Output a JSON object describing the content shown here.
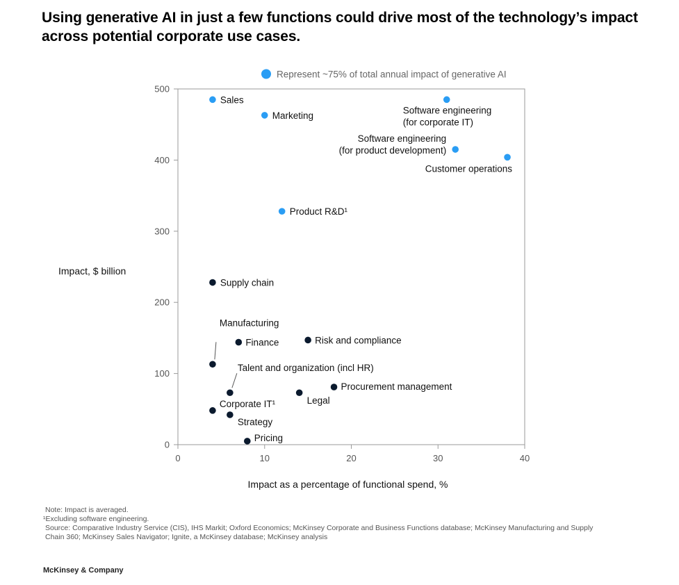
{
  "title": "Using generative AI in just a few functions could drive most of the technology’s impact across potential corporate use cases.",
  "notes": {
    "note": "Note: Impact is averaged.",
    "footnote": "¹Excluding software engineering.",
    "source": "Source: Comparative Industry Service (CIS), IHS Markit; Oxford Economics; McKinsey Corporate and Business Functions database; McKinsey Manufacturing and Supply Chain 360; McKinsey Sales Navigator; Ignite, a McKinsey database; McKinsey analysis"
  },
  "brand": "McKinsey & Company",
  "chart_data": {
    "type": "scatter",
    "xlabel": "Impact as a percentage of functional spend, %",
    "ylabel": "Impact, $ billion",
    "xlim": [
      0,
      40
    ],
    "ylim": [
      0,
      500
    ],
    "xticks": [
      0,
      10,
      20,
      30,
      40
    ],
    "yticks": [
      0,
      100,
      200,
      300,
      400,
      500
    ],
    "grid": false,
    "legend": {
      "label": "Represent ~75% of total annual impact of generative AI",
      "placement": "top-center",
      "color": "#2A9DF4"
    },
    "colors": {
      "highlight": "#2A9DF4",
      "other": "#0B1A2E"
    },
    "points": [
      {
        "label": "Sales",
        "x": 4,
        "y": 485,
        "highlight": true
      },
      {
        "label": "Marketing",
        "x": 10,
        "y": 463,
        "highlight": true
      },
      {
        "label": "Software engineering\n(for corporate IT)",
        "x": 31,
        "y": 485,
        "highlight": true
      },
      {
        "label": "Software engineering\n(for product development)",
        "x": 32,
        "y": 415,
        "highlight": true
      },
      {
        "label": "Customer operations",
        "x": 38,
        "y": 404,
        "highlight": true
      },
      {
        "label": "Product R&D¹",
        "x": 12,
        "y": 328,
        "highlight": true
      },
      {
        "label": "Supply chain",
        "x": 4,
        "y": 228,
        "highlight": false
      },
      {
        "label": "Manufacturing",
        "x": 4,
        "y": 113,
        "highlight": false
      },
      {
        "label": "Finance",
        "x": 7,
        "y": 144,
        "highlight": false
      },
      {
        "label": "Risk and compliance",
        "x": 15,
        "y": 147,
        "highlight": false
      },
      {
        "label": "Talent and organization (incl HR)",
        "x": 6,
        "y": 73,
        "highlight": false
      },
      {
        "label": "Procurement management",
        "x": 18,
        "y": 81,
        "highlight": false
      },
      {
        "label": "Legal",
        "x": 14,
        "y": 73,
        "highlight": false
      },
      {
        "label": "Corporate IT¹",
        "x": 4,
        "y": 48,
        "highlight": false
      },
      {
        "label": "Strategy",
        "x": 6,
        "y": 42,
        "highlight": false
      },
      {
        "label": "Pricing",
        "x": 8,
        "y": 5,
        "highlight": false
      }
    ]
  }
}
